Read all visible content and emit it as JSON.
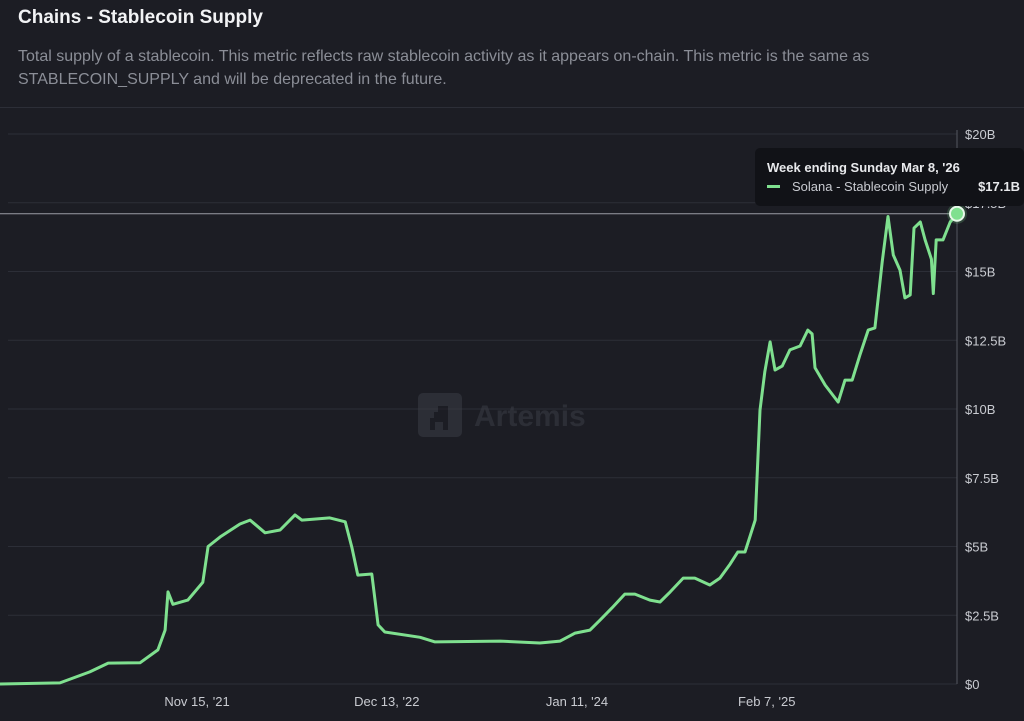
{
  "header": {
    "title": "Chains - Stablecoin Supply",
    "description": "Total supply of a stablecoin. This metric reflects raw stablecoin activity as it appears on-chain. This metric is the same as STABLECOIN_SUPPLY and will be deprecated in the future."
  },
  "watermark": "Artemis",
  "tooltip": {
    "heading": "Week ending Sunday Mar 8, '26",
    "series_name": "Solana - Stablecoin Supply",
    "value": "$17.1B"
  },
  "colors": {
    "line": "#7fe08f",
    "background": "#1c1d24",
    "grid": "#2c2e37",
    "axis_text": "#c9cbd1"
  },
  "chart_data": {
    "type": "line",
    "title": "",
    "xlabel": "",
    "ylabel": "",
    "ylim": [
      0,
      20
    ],
    "y_unit": "$B",
    "grid": true,
    "y_axis_side": "right",
    "y_ticks": [
      0,
      2.5,
      5,
      7.5,
      10,
      12.5,
      15,
      17.5,
      20
    ],
    "y_tick_labels": [
      "$0",
      "$2.5B",
      "$5B",
      "$7.5B",
      "$10B",
      "$12.5B",
      "$15B",
      "$17.5B",
      "$20B"
    ],
    "x_ticks": [
      {
        "date": "2021-11-15",
        "label": "Nov 15, '21"
      },
      {
        "date": "2022-12-13",
        "label": "Dec 13, '22"
      },
      {
        "date": "2024-01-11",
        "label": "Jan 11, '24"
      },
      {
        "date": "2025-02-07",
        "label": "Feb 7, '25"
      }
    ],
    "series": [
      {
        "name": "Solana - Stablecoin Supply",
        "points": [
          [
            "2020-10-03",
            0
          ],
          [
            "2021-02-04",
            0.04
          ],
          [
            "2021-04-07",
            0.44
          ],
          [
            "2021-05-15",
            0.76
          ],
          [
            "2021-07-20",
            0.77
          ],
          [
            "2021-08-26",
            1.24
          ],
          [
            "2021-09-10",
            1.96
          ],
          [
            "2021-09-16",
            3.35
          ],
          [
            "2021-09-26",
            2.9
          ],
          [
            "2021-10-27",
            3.05
          ],
          [
            "2021-11-27",
            3.7
          ],
          [
            "2021-12-08",
            5.0
          ],
          [
            "2022-01-02",
            5.35
          ],
          [
            "2022-02-12",
            5.82
          ],
          [
            "2022-03-05",
            5.96
          ],
          [
            "2022-04-05",
            5.5
          ],
          [
            "2022-05-06",
            5.6
          ],
          [
            "2022-06-06",
            6.15
          ],
          [
            "2022-06-20",
            5.96
          ],
          [
            "2022-08-17",
            6.04
          ],
          [
            "2022-09-18",
            5.9
          ],
          [
            "2022-10-02",
            4.95
          ],
          [
            "2022-10-14",
            3.96
          ],
          [
            "2022-11-12",
            4.0
          ],
          [
            "2022-11-25",
            2.15
          ],
          [
            "2022-12-09",
            1.89
          ],
          [
            "2023-02-20",
            1.7
          ],
          [
            "2023-03-23",
            1.53
          ],
          [
            "2023-08-05",
            1.56
          ],
          [
            "2023-10-26",
            1.49
          ],
          [
            "2023-12-07",
            1.56
          ],
          [
            "2024-01-07",
            1.85
          ],
          [
            "2024-02-07",
            1.96
          ],
          [
            "2024-02-28",
            2.33
          ],
          [
            "2024-03-23",
            2.76
          ],
          [
            "2024-04-19",
            3.27
          ],
          [
            "2024-05-10",
            3.27
          ],
          [
            "2024-06-10",
            3.05
          ],
          [
            "2024-07-01",
            2.98
          ],
          [
            "2024-07-22",
            3.35
          ],
          [
            "2024-08-18",
            3.85
          ],
          [
            "2024-09-11",
            3.85
          ],
          [
            "2024-10-12",
            3.6
          ],
          [
            "2024-11-02",
            3.85
          ],
          [
            "2024-11-23",
            4.36
          ],
          [
            "2024-12-09",
            4.8
          ],
          [
            "2024-12-24",
            4.8
          ],
          [
            "2025-01-14",
            5.96
          ],
          [
            "2025-01-24",
            9.96
          ],
          [
            "2025-02-03",
            11.35
          ],
          [
            "2025-02-14",
            12.44
          ],
          [
            "2025-02-24",
            11.42
          ],
          [
            "2025-03-11",
            11.56
          ],
          [
            "2025-03-27",
            12.15
          ],
          [
            "2025-04-17",
            12.29
          ],
          [
            "2025-05-03",
            12.87
          ],
          [
            "2025-05-12",
            12.73
          ],
          [
            "2025-05-18",
            11.5
          ],
          [
            "2025-06-08",
            10.87
          ],
          [
            "2025-07-05",
            10.25
          ],
          [
            "2025-07-19",
            11.05
          ],
          [
            "2025-08-03",
            11.05
          ],
          [
            "2025-08-19",
            11.96
          ],
          [
            "2025-09-05",
            12.87
          ],
          [
            "2025-09-19",
            12.95
          ],
          [
            "2025-10-04",
            15.35
          ],
          [
            "2025-10-16",
            17.0
          ],
          [
            "2025-10-27",
            15.6
          ],
          [
            "2025-11-10",
            15.05
          ],
          [
            "2025-11-20",
            14.04
          ],
          [
            "2025-12-01",
            14.15
          ],
          [
            "2025-12-09",
            16.58
          ],
          [
            "2025-12-22",
            16.8
          ],
          [
            "2026-01-01",
            16.15
          ],
          [
            "2026-01-14",
            15.45
          ],
          [
            "2026-01-18",
            14.2
          ],
          [
            "2026-01-24",
            16.15
          ],
          [
            "2026-02-07",
            16.15
          ],
          [
            "2026-02-22",
            16.8
          ],
          [
            "2026-03-08",
            17.1
          ]
        ]
      }
    ],
    "highlighted_point": {
      "date": "2026-03-08",
      "value": 17.1
    }
  }
}
